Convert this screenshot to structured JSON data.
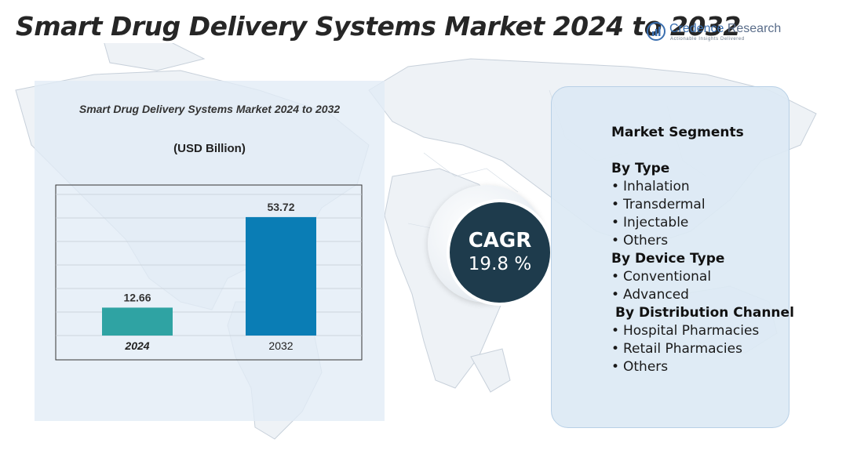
{
  "page": {
    "title": "Smart Drug Delivery Systems Market 2024 to 2032"
  },
  "brand": {
    "name_part1": "Credence",
    "name_part2": " Research",
    "tagline": "Actionable Insights Delivered",
    "logo_icon": "credence-logo-icon"
  },
  "chart_data": {
    "type": "bar",
    "title": "Smart Drug Delivery Systems Market 2024 to 2032",
    "unit_label": "(USD Billion)",
    "categories": [
      "2024",
      "2032"
    ],
    "values": [
      12.66,
      53.72
    ],
    "value_labels": [
      "12.66",
      "53.72"
    ],
    "colors": [
      "#2fa3a3",
      "#0a7db5"
    ],
    "ylim": [
      0,
      64
    ],
    "grid": true,
    "xlabel": "",
    "ylabel": ""
  },
  "cagr": {
    "label": "CAGR",
    "value": "19.8 %"
  },
  "segments": {
    "heading": "Market Segments",
    "groups": [
      {
        "title": "By Type",
        "items": [
          "Inhalation",
          "Transdermal",
          "Injectable",
          "Others"
        ]
      },
      {
        "title": "By Device Type",
        "items": [
          "Conventional",
          "Advanced"
        ]
      },
      {
        "title": "By Distribution Channel",
        "items": [
          "Hospital Pharmacies",
          "Retail Pharmacies",
          "Others"
        ]
      }
    ],
    "bullet": "•"
  }
}
